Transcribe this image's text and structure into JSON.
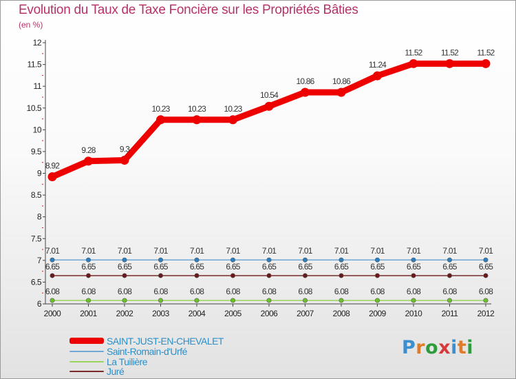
{
  "header": {
    "title": "Evolution du Taux de Taxe Foncière sur les Propriétés Bâties",
    "unit": "(en %)"
  },
  "logo": {
    "text": "Proxiti",
    "colors": [
      "#3a8fd0",
      "#e07b2a",
      "#2e9c3e",
      "#d63a3a",
      "#3a8fd0",
      "#e07b2a",
      "#2e9c3e"
    ]
  },
  "chart_data": {
    "type": "line",
    "title": "Evolution du Taux de Taxe Foncière sur les Propriétés Bâties",
    "ylabel": "(en %)",
    "xlabel": "",
    "ylim": [
      6,
      12
    ],
    "yticks": [
      "6",
      "6.5",
      "7",
      "7.5",
      "8",
      "8.5",
      "9",
      "9.5",
      "10",
      "10.5",
      "11",
      "11.5",
      "12"
    ],
    "x": [
      "2000",
      "2001",
      "2002",
      "2003",
      "2004",
      "2005",
      "2006",
      "2007",
      "2008",
      "2009",
      "2010",
      "2011",
      "2012"
    ],
    "grid": false,
    "legend_position": "bottom-left",
    "series": [
      {
        "name": "SAINT-JUST-EN-CHEVALET",
        "color": "#ee0000",
        "marker": "#ee0000",
        "values": [
          8.92,
          9.28,
          9.3,
          10.23,
          10.23,
          10.23,
          10.54,
          10.86,
          10.86,
          11.24,
          11.52,
          11.52,
          11.52
        ],
        "labels": [
          "8.92",
          "9.28",
          "9.3",
          "10.23",
          "10.23",
          "10.23",
          "10.54",
          "10.86",
          "10.86",
          "11.24",
          "11.52",
          "11.52",
          "11.52"
        ]
      },
      {
        "name": "Saint-Romain-d'Urfé",
        "color": "#6fa8d6",
        "marker": "#2e7fc0",
        "values": [
          7.01,
          7.01,
          7.01,
          7.01,
          7.01,
          7.01,
          7.01,
          7.01,
          7.01,
          7.01,
          7.01,
          7.01,
          7.01
        ],
        "labels": [
          "7.01",
          "7.01",
          "7.01",
          "7.01",
          "7.01",
          "7.01",
          "7.01",
          "7.01",
          "7.01",
          "7.01",
          "7.01",
          "7.01",
          "7.01"
        ]
      },
      {
        "name": "La Tuilière",
        "color": "#9ad45a",
        "marker": "#6cc02a",
        "values": [
          6.08,
          6.08,
          6.08,
          6.08,
          6.08,
          6.08,
          6.08,
          6.08,
          6.08,
          6.08,
          6.08,
          6.08,
          6.08
        ],
        "labels": [
          "6.08",
          "6.08",
          "6.08",
          "6.08",
          "6.08",
          "6.08",
          "6.08",
          "6.08",
          "6.08",
          "6.08",
          "6.08",
          "6.08",
          "6.08"
        ]
      },
      {
        "name": "Juré",
        "color": "#7a2a2a",
        "marker": "#6a1a1a",
        "values": [
          6.65,
          6.65,
          6.65,
          6.65,
          6.65,
          6.65,
          6.65,
          6.65,
          6.65,
          6.65,
          6.65,
          6.65,
          6.65
        ],
        "labels": [
          "6.65",
          "6.65",
          "6.65",
          "6.65",
          "6.65",
          "6.65",
          "6.65",
          "6.65",
          "6.65",
          "6.65",
          "6.65",
          "6.65",
          "6.65"
        ]
      }
    ]
  }
}
